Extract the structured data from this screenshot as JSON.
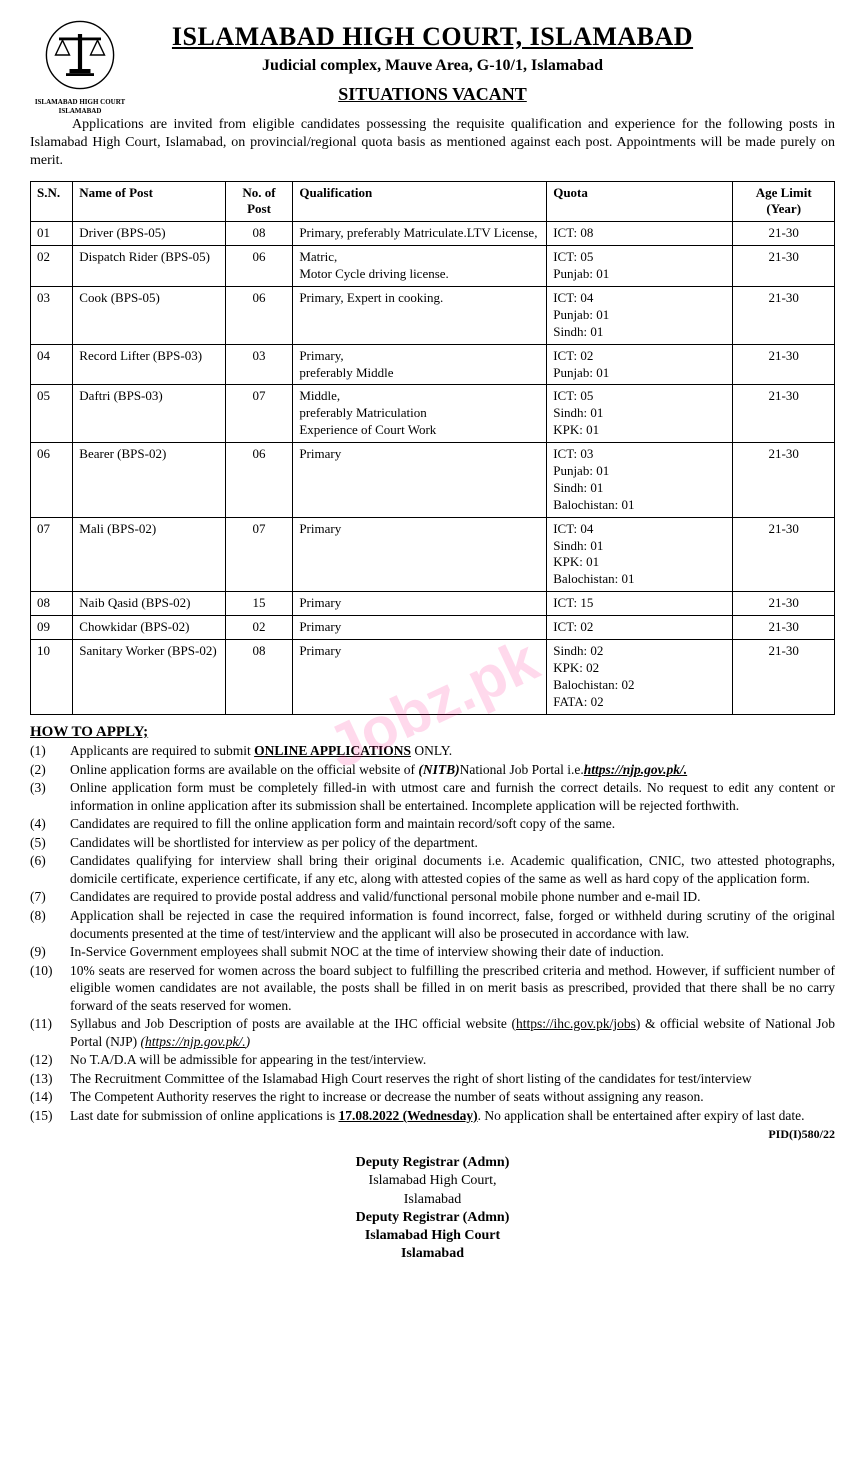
{
  "header": {
    "emblem_label": "ISLAMABAD HIGH COURT ISLAMABAD",
    "title": "ISLAMABAD HIGH COURT, ISLAMABAD",
    "subtitle": "Judicial complex, Mauve Area, G-10/1, Islamabad",
    "section": "SITUATIONS VACANT"
  },
  "intro": "Applications are invited from eligible candidates possessing the requisite qualification and experience for the following posts in Islamabad High Court, Islamabad, on provincial/regional quota basis as mentioned against each post. Appointments will be made purely on merit.",
  "table": {
    "headers": {
      "sn": "S.N.",
      "name": "Name of Post",
      "no": "No. of Post",
      "qual": "Qualification",
      "quota": "Quota",
      "age": "Age Limit (Year)"
    },
    "rows": [
      {
        "sn": "01",
        "name": "Driver (BPS-05)",
        "no": "08",
        "qual": "Primary, preferably Matriculate.LTV License,",
        "quota": "ICT:        08",
        "age": "21-30"
      },
      {
        "sn": "02",
        "name": "Dispatch Rider (BPS-05)",
        "no": "06",
        "qual": "Matric,\nMotor Cycle driving license.",
        "quota": "ICT:        05\nPunjab:   01",
        "age": "21-30"
      },
      {
        "sn": "03",
        "name": "Cook (BPS-05)",
        "no": "06",
        "qual": "Primary, Expert in cooking.",
        "quota": "ICT:        04\nPunjab:   01\nSindh:    01",
        "age": "21-30"
      },
      {
        "sn": "04",
        "name": "Record Lifter (BPS-03)",
        "no": "03",
        "qual": "Primary,\npreferably Middle",
        "quota": "ICT:        02\nPunjab:   01",
        "age": "21-30"
      },
      {
        "sn": "05",
        "name": "Daftri (BPS-03)",
        "no": "07",
        "qual": "Middle,\npreferably Matriculation\nExperience of Court Work",
        "quota": "ICT:        05\nSindh:    01\nKPK:      01",
        "age": "21-30"
      },
      {
        "sn": "06",
        "name": "Bearer (BPS-02)",
        "no": "06",
        "qual": "Primary",
        "quota": "ICT:        03\nPunjab:   01\nSindh:    01\nBalochistan: 01",
        "age": "21-30"
      },
      {
        "sn": "07",
        "name": "Mali (BPS-02)",
        "no": "07",
        "qual": "Primary",
        "quota": "ICT:        04\nSindh:    01\nKPK:      01\nBalochistan: 01",
        "age": "21-30"
      },
      {
        "sn": "08",
        "name": "Naib Qasid (BPS-02)",
        "no": "15",
        "qual": "Primary",
        "quota": "ICT:        15",
        "age": "21-30"
      },
      {
        "sn": "09",
        "name": "Chowkidar (BPS-02)",
        "no": "02",
        "qual": "Primary",
        "quota": "ICT:        02",
        "age": "21-30"
      },
      {
        "sn": "10",
        "name": "Sanitary Worker (BPS-02)",
        "no": "08",
        "qual": "Primary",
        "quota": "Sindh:    02\nKPK:      02\nBalochistan: 02\nFATA:    02",
        "age": "21-30"
      }
    ]
  },
  "howto": {
    "title": "HOW TO APPLY;",
    "items": [
      {
        "n": "(1)",
        "html": "Applicants are required to submit <b><u>ONLINE APPLICATIONS</u></b> ONLY."
      },
      {
        "n": "(2)",
        "html": "Online application forms are available on the official website of <b><i>(NITB)</i></b>National Job Portal i.e.<b><i><u>https://njp.gov.pk/.</u></i></b>"
      },
      {
        "n": "(3)",
        "html": "Online application form must be completely filled-in with utmost care and furnish the correct details. No request to edit any content or information in online application after its submission shall be entertained. Incomplete application will be rejected forthwith."
      },
      {
        "n": "(4)",
        "html": "Candidates are required to fill the online application form and maintain record/soft copy of the same."
      },
      {
        "n": "(5)",
        "html": "Candidates will be shortlisted for interview as per policy of the department."
      },
      {
        "n": "(6)",
        "html": "Candidates qualifying for interview shall bring their original documents i.e. Academic qualification, CNIC, two attested photographs, domicile certificate, experience certificate, if any etc, along with attested copies of the same as well as hard copy of the application form."
      },
      {
        "n": "(7)",
        "html": "Candidates are required to provide postal address and valid/functional personal mobile phone number and e-mail ID."
      },
      {
        "n": "(8)",
        "html": "Application shall be rejected in case the required information is found incorrect, false, forged or withheld during scrutiny of the original documents presented at the time of test/interview and the applicant will also be prosecuted in accordance with law."
      },
      {
        "n": "(9)",
        "html": "In-Service Government employees shall submit NOC at the time of interview showing their date of induction."
      },
      {
        "n": "(10)",
        "html": "10% seats are reserved for women across the board subject to fulfilling the prescribed criteria and method. However, if sufficient number of eligible women candidates are not available, the posts shall be filled in on merit basis as prescribed, provided that there shall be no carry forward of the seats reserved for women."
      },
      {
        "n": "(11)",
        "html": "Syllabus and Job Description of posts are available at the IHC official website (<u>https://ihc.gov.pk/jobs</u>) & official website of National Job Portal (NJP) <i>(<u>https://njp.gov.pk/.</u>)</i>"
      },
      {
        "n": "(12)",
        "html": "No T.A/D.A will be admissible for appearing in the test/interview."
      },
      {
        "n": "(13)",
        "html": "The Recruitment Committee of the Islamabad High Court reserves the right of short listing of the candidates for test/interview"
      },
      {
        "n": "(14)",
        "html": "The Competent Authority reserves the right to increase or decrease the number of seats without assigning any reason."
      },
      {
        "n": "(15)",
        "html": "Last date for submission of online applications is <b><u>17.08.2022 (Wednesday)</u></b>. No application shall be entertained after expiry of last date."
      }
    ]
  },
  "pid": "PID(I)580/22",
  "signature": {
    "title1": "Deputy Registrar (Admn)",
    "line1": "Islamabad High Court,",
    "line2": "Islamabad",
    "title2": "Deputy Registrar (Admn)",
    "line3": "Islamabad High Court",
    "line4": "Islamabad"
  },
  "watermark": "Jobz.pk"
}
